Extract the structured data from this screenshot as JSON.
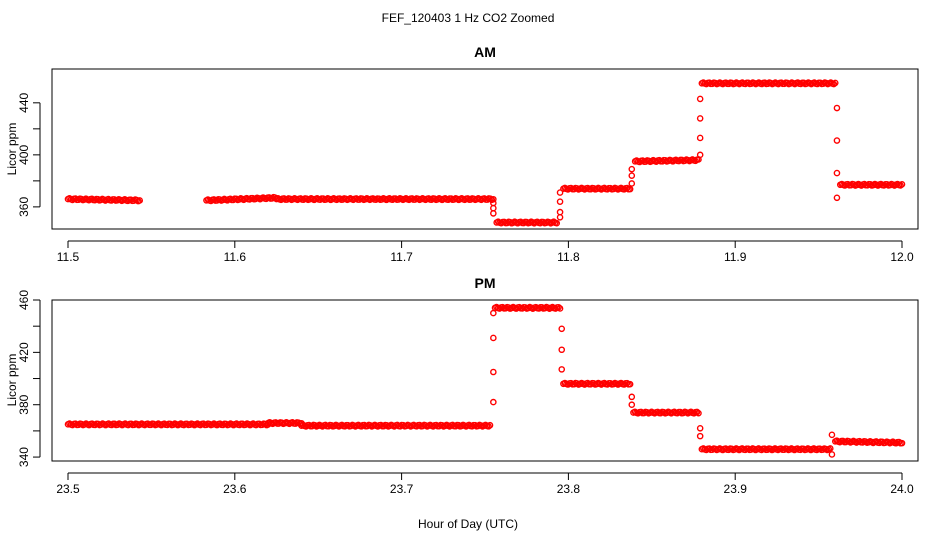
{
  "chart_data": {
    "type": "scatter",
    "title": "FEF_120403  1 Hz CO2 Zoomed",
    "xlabel": "Hour of Day (UTC)",
    "marker_color": "#ff0000",
    "marker": "open-circle",
    "grid": false,
    "panels": [
      {
        "title": "AM",
        "ylabel": "Licor ppm",
        "xlim": [
          11.5,
          12.0
        ],
        "ylim": [
          343,
          466
        ],
        "xticks": [
          "11.5",
          "11.6",
          "11.7",
          "11.8",
          "11.9",
          "12.0"
        ],
        "yticks": [
          "360",
          "400",
          "440"
        ],
        "segments": [
          {
            "x": [
              11.5,
              11.543
            ],
            "y": [
              366,
              365
            ]
          },
          {
            "x": [
              11.583,
              11.625
            ],
            "y": [
              365,
              367
            ]
          },
          {
            "x": [
              11.625,
              11.755
            ],
            "y": [
              366,
              366
            ]
          },
          {
            "x": [
              11.757,
              11.793
            ],
            "y": [
              348,
              348
            ]
          },
          {
            "x": [
              11.797,
              11.837
            ],
            "y": [
              374,
              374
            ]
          },
          {
            "x": [
              11.84,
              11.878
            ],
            "y": [
              395,
              396
            ]
          },
          {
            "x": [
              11.88,
              11.96
            ],
            "y": [
              455,
              455
            ]
          },
          {
            "x": [
              11.963,
              12.0
            ],
            "y": [
              377,
              377
            ]
          }
        ],
        "transitions": [
          {
            "x": 11.755,
            "y": [
              363,
              359,
              355
            ]
          },
          {
            "x": 11.795,
            "y": [
              352,
              356,
              364,
              371
            ]
          },
          {
            "x": 11.838,
            "y": [
              378,
              384,
              389
            ]
          },
          {
            "x": 11.879,
            "y": [
              400,
              413,
              428,
              443
            ]
          },
          {
            "x": 11.961,
            "y": [
              436,
              411,
              386,
              367
            ]
          }
        ]
      },
      {
        "title": "PM",
        "ylabel": "Licor ppm",
        "xlim": [
          23.5,
          24.0
        ],
        "ylim": [
          337,
          460
        ],
        "xticks": [
          "23.5",
          "23.6",
          "23.7",
          "23.8",
          "23.9",
          "24.0"
        ],
        "yticks": [
          "340",
          "380",
          "420",
          "460"
        ],
        "segments": [
          {
            "x": [
              23.5,
              23.62
            ],
            "y": [
              365,
              365
            ]
          },
          {
            "x": [
              23.62,
              23.64
            ],
            "y": [
              366,
              366
            ]
          },
          {
            "x": [
              23.64,
              23.753
            ],
            "y": [
              364,
              364
            ]
          },
          {
            "x": [
              23.756,
              23.795
            ],
            "y": [
              454,
              454
            ]
          },
          {
            "x": [
              23.797,
              23.837
            ],
            "y": [
              396,
              396
            ]
          },
          {
            "x": [
              23.839,
              23.878
            ],
            "y": [
              374,
              374
            ]
          },
          {
            "x": [
              23.88,
              23.957
            ],
            "y": [
              346,
              346
            ]
          },
          {
            "x": [
              23.96,
              24.0
            ],
            "y": [
              352,
              351
            ]
          }
        ],
        "transitions": [
          {
            "x": 23.755,
            "y": [
              382,
              405,
              431,
              450
            ]
          },
          {
            "x": 23.796,
            "y": [
              438,
              422,
              407
            ]
          },
          {
            "x": 23.838,
            "y": [
              386,
              380
            ]
          },
          {
            "x": 23.879,
            "y": [
              362,
              356
            ]
          },
          {
            "x": 23.958,
            "y": [
              342,
              357
            ]
          }
        ]
      }
    ]
  }
}
